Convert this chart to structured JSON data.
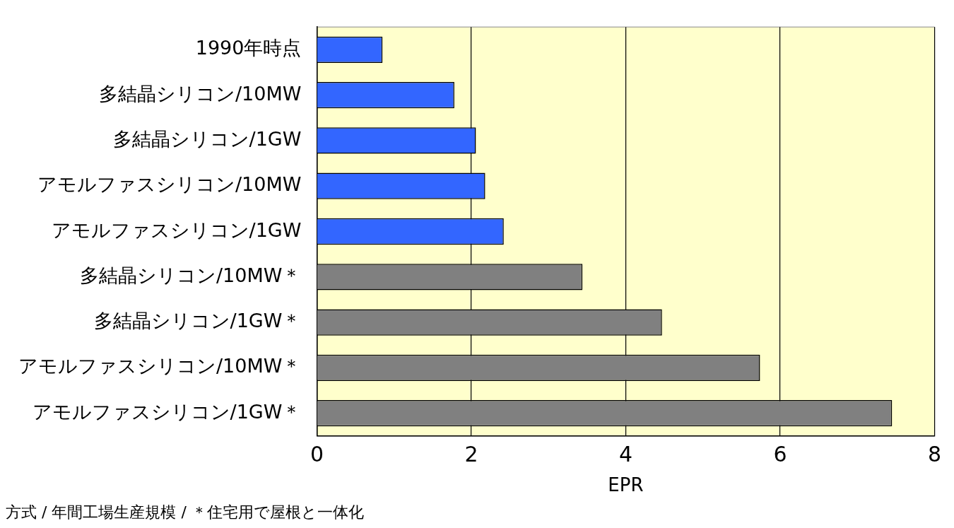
{
  "chart_data": {
    "type": "bar",
    "orientation": "horizontal",
    "xlabel": "EPR",
    "categories": [
      "1990年時点",
      "多結晶シリコン/10MW",
      "多結晶シリコン/1GW",
      "アモルファスシリコン/10MW",
      "アモルファスシリコン/1GW",
      "多結晶シリコン/10MW＊",
      "多結晶シリコン/1GW＊",
      "アモルファスシリコン/10MW＊",
      "アモルファスシリコン/1GW＊"
    ],
    "values": [
      0.85,
      1.78,
      2.06,
      2.18,
      2.42,
      3.44,
      4.47,
      5.74,
      7.45
    ],
    "colors": [
      "#3366ff",
      "#3366ff",
      "#3366ff",
      "#3366ff",
      "#3366ff",
      "#808080",
      "#808080",
      "#808080",
      "#808080"
    ],
    "xlim": [
      0,
      8
    ],
    "xticks": [
      0,
      2,
      4,
      6,
      8
    ],
    "grid": "x",
    "annotations": [
      "方式 / 年間工場生産規模 / ＊住宅用で屋根と一体化"
    ]
  }
}
